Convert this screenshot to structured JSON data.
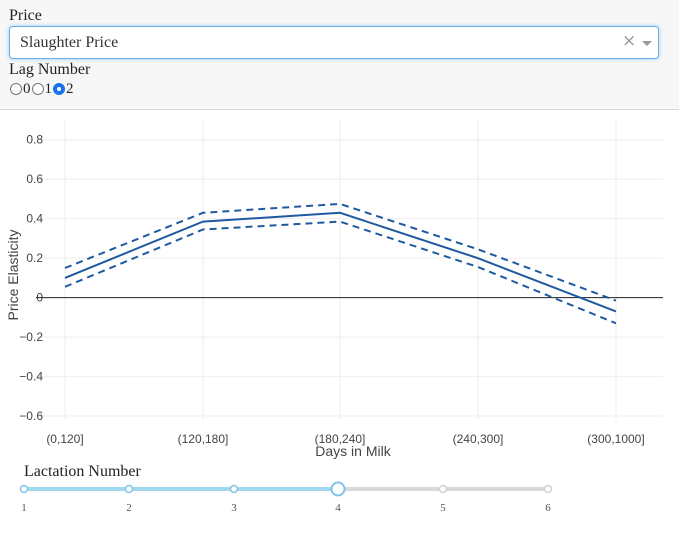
{
  "controls": {
    "price": {
      "label": "Price",
      "selected": "Slaughter Price",
      "clear_glyph": "×"
    },
    "lag": {
      "label": "Lag Number",
      "options": [
        "0",
        "1",
        "2"
      ],
      "selected": "2"
    }
  },
  "chart_data": {
    "type": "line",
    "title": "",
    "xlabel": "Days in Milk",
    "ylabel": "Price Elasticity",
    "categories": [
      "(0,120]",
      "(120,180]",
      "(180,240]",
      "(240,300]",
      "(300,1000]"
    ],
    "ylim": [
      -0.62,
      0.9
    ],
    "yticks": [
      "0.8",
      "0.6",
      "0.4",
      "0.2",
      "0",
      "−0.2",
      "−0.4",
      "−0.6"
    ],
    "ytick_values": [
      0.8,
      0.6,
      0.4,
      0.2,
      0,
      -0.2,
      -0.4,
      -0.6
    ],
    "grid": true,
    "zero_line": true,
    "series": [
      {
        "role": "estimate",
        "style": "solid",
        "values": [
          0.1,
          0.385,
          0.43,
          0.2,
          -0.07
        ]
      },
      {
        "role": "upper_bound",
        "style": "dashed",
        "values": [
          0.15,
          0.43,
          0.475,
          0.245,
          -0.015
        ]
      },
      {
        "role": "lower_bound",
        "style": "dashed",
        "values": [
          0.055,
          0.345,
          0.385,
          0.155,
          -0.13
        ]
      }
    ],
    "line_color": "#1f5aa0"
  },
  "lactation": {
    "label": "Lactation Number",
    "marks": [
      "1",
      "2",
      "3",
      "4",
      "5",
      "6"
    ],
    "value": 4,
    "track_color": "#d9d9d9",
    "active_color": "#a0d8f0",
    "handle_color": "#7fc4e8"
  }
}
